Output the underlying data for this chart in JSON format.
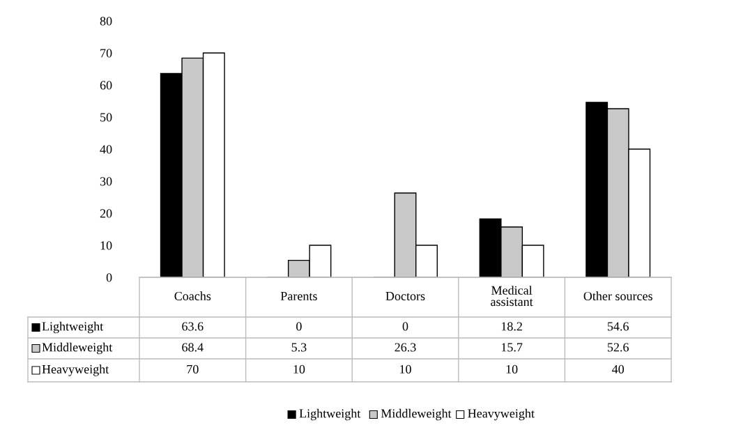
{
  "chart_data": {
    "type": "bar",
    "categories": [
      "Coachs",
      "Parents",
      "Doctors",
      "Medical\nassistant",
      "Other sources"
    ],
    "series": [
      {
        "name": "Lightweight",
        "color": "#000000",
        "values": [
          63.6,
          0,
          0,
          18.2,
          54.6
        ]
      },
      {
        "name": "Middleweight",
        "color": "#c8c8c8",
        "values": [
          68.4,
          5.3,
          26.3,
          15.7,
          52.6
        ]
      },
      {
        "name": "Heavyweight",
        "color": "#ffffff",
        "values": [
          70,
          10,
          10,
          10,
          40
        ]
      }
    ],
    "ylim": [
      0,
      80
    ],
    "yticks": [
      0,
      10,
      20,
      30,
      40,
      50,
      60,
      70,
      80
    ],
    "data_labels": true,
    "legend": "bottom",
    "grid": false
  }
}
